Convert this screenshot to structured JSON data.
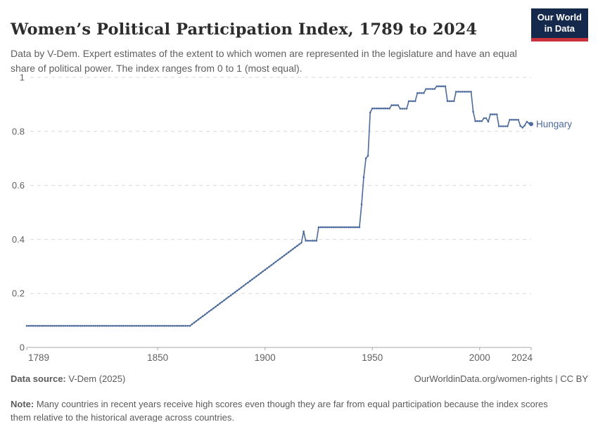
{
  "header": {
    "title": "Women’s Political Participation Index, 1789 to 2024",
    "subtitle": "Data by V-Dem. Expert estimates of the extent to which women are represented in the legislature and have an equal share of political power. The index ranges from 0 to 1 (most equal).",
    "logo": {
      "line1": "Our World",
      "line2": "in Data",
      "bg_color": "#15294d",
      "bar_color": "#c9313d"
    }
  },
  "chart_data": {
    "type": "line",
    "title": "Women's Political Participation Index, 1789 to 2024",
    "xlabel": "",
    "ylabel": "",
    "xlim": [
      1789,
      2024
    ],
    "ylim": [
      0,
      1
    ],
    "x_ticks": [
      1789,
      1850,
      1900,
      1950,
      2000,
      2024
    ],
    "y_ticks": [
      0,
      0.2,
      0.4,
      0.6,
      0.8,
      1
    ],
    "grid": "dashed-horizontal",
    "legend_position": "end-of-line-label",
    "interpolation": "linear-by-year (markers drawn at every year)",
    "series": [
      {
        "name": "Hungary",
        "color": "#4c6a9c",
        "end_label": "Hungary",
        "end_value": 0.827,
        "points": [
          [
            1789,
            0.08
          ],
          [
            1865,
            0.08
          ],
          [
            1917,
            0.388
          ],
          [
            1918,
            0.43
          ],
          [
            1919,
            0.395
          ],
          [
            1924,
            0.395
          ],
          [
            1925,
            0.445
          ],
          [
            1944,
            0.445
          ],
          [
            1945,
            0.53
          ],
          [
            1946,
            0.63
          ],
          [
            1947,
            0.7
          ],
          [
            1948,
            0.71
          ],
          [
            1949,
            0.87
          ],
          [
            1950,
            0.885
          ],
          [
            1958,
            0.885
          ],
          [
            1959,
            0.897
          ],
          [
            1962,
            0.897
          ],
          [
            1963,
            0.884
          ],
          [
            1966,
            0.884
          ],
          [
            1967,
            0.912
          ],
          [
            1970,
            0.912
          ],
          [
            1971,
            0.942
          ],
          [
            1974,
            0.942
          ],
          [
            1975,
            0.957
          ],
          [
            1979,
            0.957
          ],
          [
            1980,
            0.967
          ],
          [
            1984,
            0.967
          ],
          [
            1985,
            0.912
          ],
          [
            1988,
            0.912
          ],
          [
            1989,
            0.947
          ],
          [
            1996,
            0.947
          ],
          [
            1997,
            0.873
          ],
          [
            1998,
            0.838
          ],
          [
            2001,
            0.838
          ],
          [
            2002,
            0.849
          ],
          [
            2003,
            0.849
          ],
          [
            2004,
            0.836
          ],
          [
            2005,
            0.863
          ],
          [
            2008,
            0.863
          ],
          [
            2009,
            0.819
          ],
          [
            2013,
            0.819
          ],
          [
            2014,
            0.843
          ],
          [
            2018,
            0.843
          ],
          [
            2019,
            0.82
          ],
          [
            2020,
            0.814
          ],
          [
            2021,
            0.822
          ],
          [
            2022,
            0.836
          ],
          [
            2023,
            0.83
          ],
          [
            2024,
            0.827
          ]
        ]
      }
    ],
    "colors": {
      "gridline": "#d9d9d9",
      "axis": "#a8a8a8",
      "tick_label": "#606060"
    }
  },
  "footer": {
    "source_label": "Data source:",
    "source_value": " V-Dem (2025)",
    "rights": "OurWorldinData.org/women-rights | CC BY",
    "note_label": "Note:",
    "note_value": " Many countries in recent years receive high scores even though they are far from equal participation because the index scores them relative to the historical average across countries."
  }
}
